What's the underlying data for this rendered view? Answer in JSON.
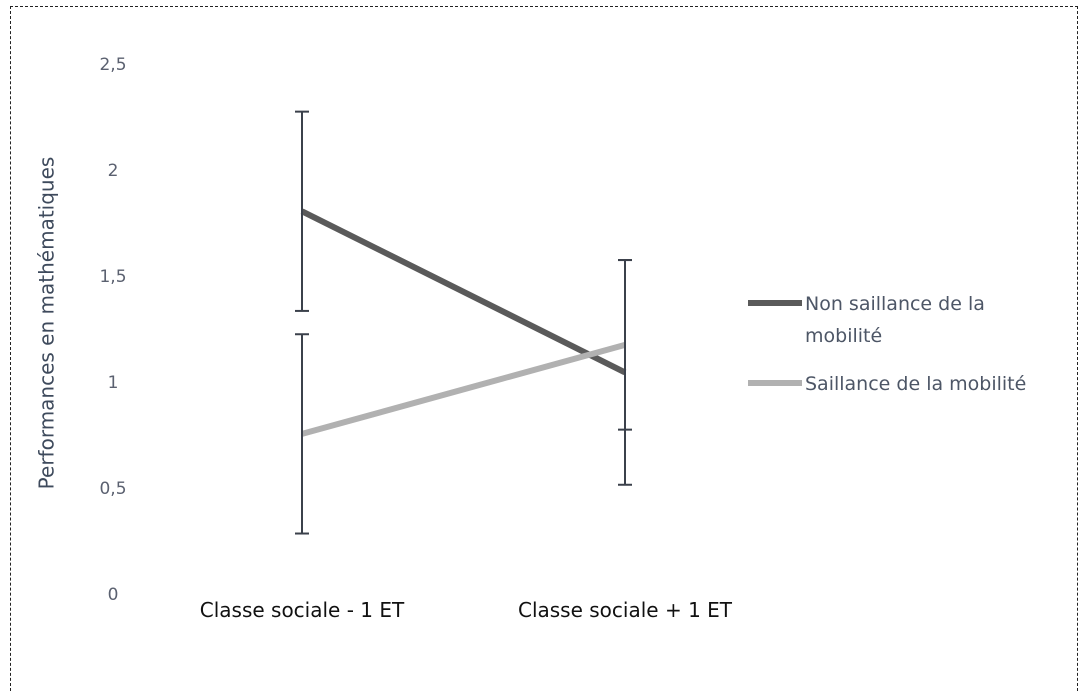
{
  "chart_data": {
    "type": "line",
    "y_label": "Performances en mathématiques",
    "categories": [
      "Classe sociale - 1 ET",
      "Classe sociale + 1 ET"
    ],
    "series": [
      {
        "name": "Non saillance de la mobilité",
        "color": "#5a5a5a",
        "values": [
          1.81,
          1.05
        ],
        "errors": [
          0.47,
          0.53
        ]
      },
      {
        "name": "Saillance de la mobilité",
        "color": "#b1b1b1",
        "values": [
          0.76,
          1.18
        ],
        "errors": [
          0.47,
          0.4
        ]
      }
    ],
    "error_color": "#3b414b",
    "ylim": [
      0,
      2.5
    ],
    "yticks": [
      0,
      {
        "value": 0.5,
        "label": "0,5"
      },
      1,
      {
        "value": 1.5,
        "label": "1,5"
      },
      2,
      {
        "value": 2.5,
        "label": "2,5"
      }
    ],
    "grid": false,
    "legend": "right"
  }
}
